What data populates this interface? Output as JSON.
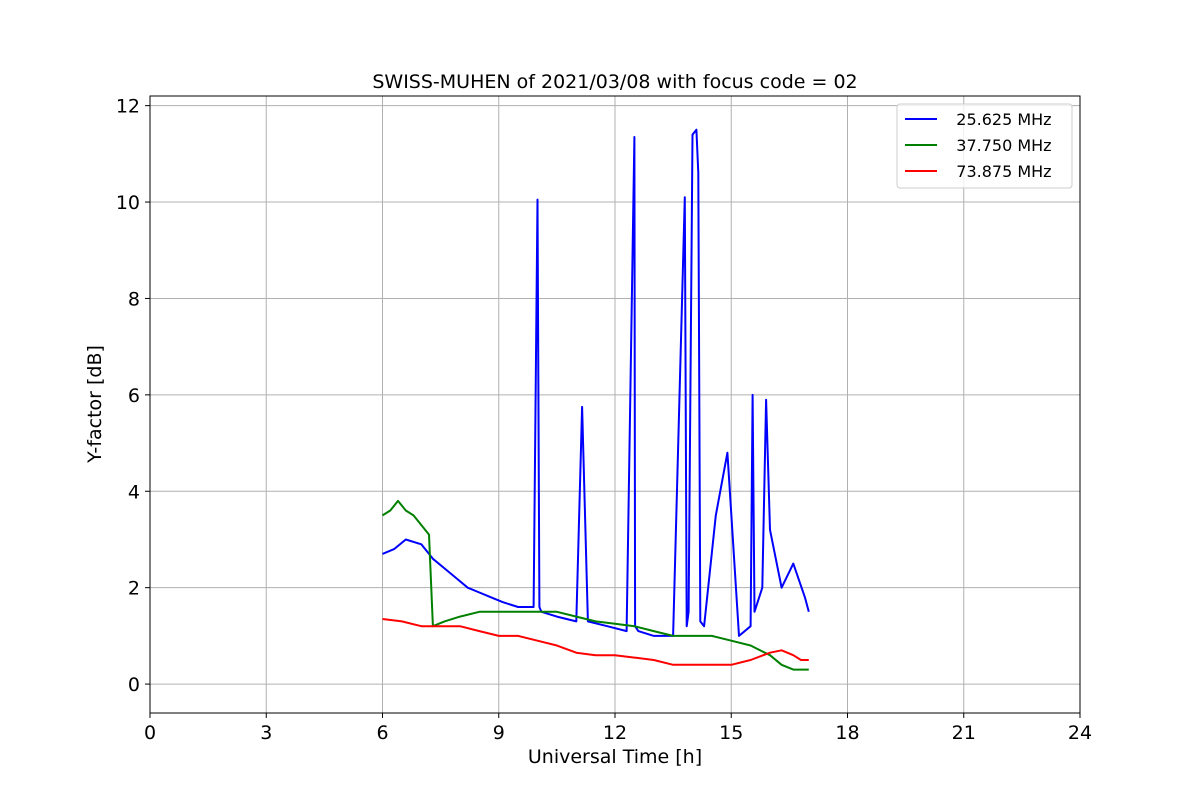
{
  "chart_data": {
    "type": "line",
    "title": "SWISS-MUHEN of 2021/03/08 with focus code = 02",
    "xlabel": "Universal Time [h]",
    "ylabel": "Y-factor [dB]",
    "xlim": [
      0,
      24
    ],
    "ylim": [
      -0.6,
      12.2
    ],
    "xticks": [
      0,
      3,
      6,
      9,
      12,
      15,
      18,
      21,
      24
    ],
    "yticks": [
      0,
      2,
      4,
      6,
      8,
      10,
      12
    ],
    "grid": true,
    "legend_position": "top-right",
    "series": [
      {
        "name": "   25.625 MHz",
        "color": "#0000ff",
        "x": [
          6.0,
          6.3,
          6.6,
          7.0,
          7.3,
          7.6,
          7.9,
          8.2,
          8.5,
          8.8,
          9.1,
          9.5,
          9.9,
          10.0,
          10.05,
          10.1,
          10.5,
          11.0,
          11.15,
          11.3,
          11.8,
          12.3,
          12.5,
          12.52,
          12.6,
          13.0,
          13.5,
          13.8,
          13.85,
          13.9,
          14.0,
          14.1,
          14.15,
          14.2,
          14.3,
          14.6,
          14.9,
          15.2,
          15.5,
          15.55,
          15.6,
          15.8,
          15.9,
          16.0,
          16.3,
          16.6,
          16.9,
          17.0
        ],
        "y": [
          2.7,
          2.8,
          3.0,
          2.9,
          2.6,
          2.4,
          2.2,
          2.0,
          1.9,
          1.8,
          1.7,
          1.6,
          1.6,
          10.05,
          1.6,
          1.5,
          1.4,
          1.3,
          5.75,
          1.3,
          1.2,
          1.1,
          11.35,
          1.2,
          1.1,
          1.0,
          1.0,
          10.1,
          1.2,
          1.5,
          11.4,
          11.5,
          10.6,
          1.3,
          1.2,
          3.5,
          4.8,
          1.0,
          1.2,
          6.0,
          1.5,
          2.0,
          5.9,
          3.2,
          2.0,
          2.5,
          1.8,
          1.5
        ]
      },
      {
        "name": "   37.750 MHz",
        "color": "#008000",
        "x": [
          6.0,
          6.2,
          6.4,
          6.6,
          6.8,
          7.0,
          7.2,
          7.3,
          7.6,
          8.0,
          8.5,
          9.0,
          9.5,
          10.0,
          10.5,
          11.0,
          11.5,
          12.0,
          12.5,
          13.0,
          13.5,
          14.0,
          14.5,
          15.0,
          15.5,
          16.0,
          16.3,
          16.6,
          16.8,
          17.0
        ],
        "y": [
          3.5,
          3.6,
          3.8,
          3.6,
          3.5,
          3.3,
          3.1,
          1.2,
          1.3,
          1.4,
          1.5,
          1.5,
          1.5,
          1.5,
          1.5,
          1.4,
          1.3,
          1.25,
          1.2,
          1.1,
          1.0,
          1.0,
          1.0,
          0.9,
          0.8,
          0.6,
          0.4,
          0.3,
          0.3,
          0.3
        ]
      },
      {
        "name": "   73.875 MHz",
        "color": "#ff0000",
        "x": [
          6.0,
          6.5,
          7.0,
          7.5,
          8.0,
          8.5,
          9.0,
          9.5,
          10.0,
          10.5,
          11.0,
          11.5,
          12.0,
          12.5,
          13.0,
          13.5,
          14.0,
          14.5,
          15.0,
          15.5,
          16.0,
          16.3,
          16.6,
          16.8,
          17.0
        ],
        "y": [
          1.35,
          1.3,
          1.2,
          1.2,
          1.2,
          1.1,
          1.0,
          1.0,
          0.9,
          0.8,
          0.65,
          0.6,
          0.6,
          0.55,
          0.5,
          0.4,
          0.4,
          0.4,
          0.4,
          0.5,
          0.65,
          0.7,
          0.6,
          0.5,
          0.5
        ]
      }
    ]
  }
}
